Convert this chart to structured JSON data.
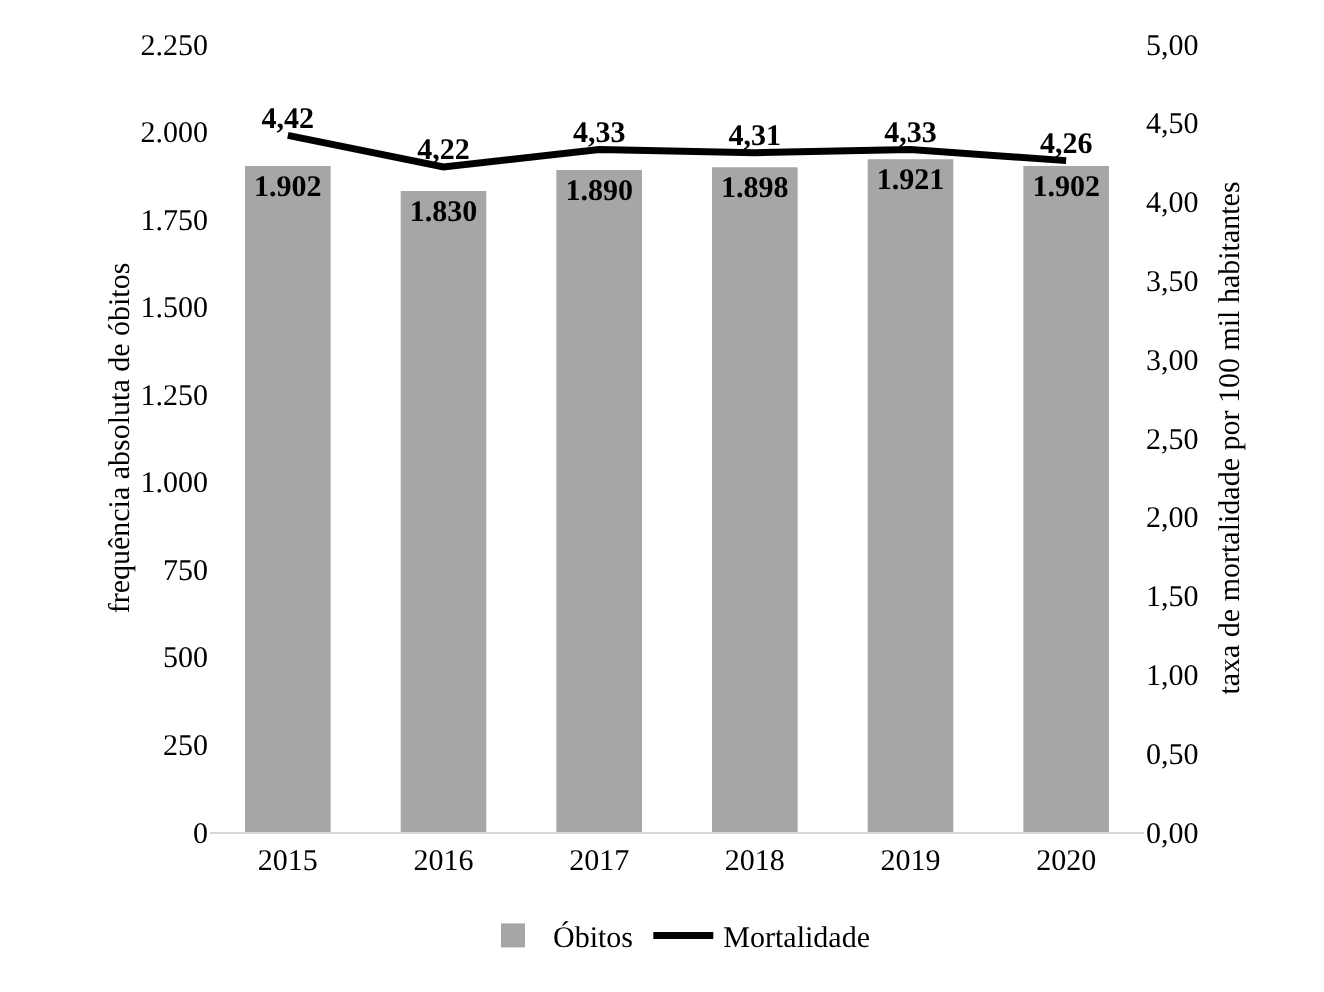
{
  "chart_data": {
    "type": "bar",
    "categories": [
      "2015",
      "2016",
      "2017",
      "2018",
      "2019",
      "2020"
    ],
    "series": [
      {
        "name": "Óbitos",
        "color": "#a6a6a6",
        "values": [
          1902,
          1830,
          1890,
          1898,
          1921,
          1902
        ],
        "value_labels": [
          "1.902",
          "1.830",
          "1.890",
          "1.898",
          "1.921",
          "1.902"
        ]
      },
      {
        "name": "Mortalidade",
        "type": "line",
        "axis": "y2",
        "color": "#000000",
        "values": [
          4.42,
          4.22,
          4.33,
          4.31,
          4.33,
          4.26
        ],
        "value_labels": [
          "4,42",
          "4,22",
          "4,33",
          "4,31",
          "4,33",
          "4,26"
        ]
      }
    ],
    "ylabel": "frequência absoluta de óbitos",
    "y2label": "taxa de mortalidade por 100 mil habitantes",
    "ylim": [
      0,
      2250
    ],
    "yticks": [
      0,
      250,
      500,
      750,
      {
        "value": 1000,
        "label": "1.000"
      },
      {
        "value": 1250,
        "label": "1.250"
      },
      {
        "value": 1500,
        "label": "1.500"
      },
      {
        "value": 1750,
        "label": "1.750"
      },
      {
        "value": 2000,
        "label": "2.000"
      },
      {
        "value": 2250,
        "label": "2.250"
      }
    ],
    "y2lim": [
      0,
      5
    ],
    "y2ticks": [
      {
        "value": 0,
        "label": "0,00"
      },
      {
        "value": 0.5,
        "label": "0,50"
      },
      {
        "value": 1,
        "label": "1,00"
      },
      {
        "value": 1.5,
        "label": "1,50"
      },
      {
        "value": 2,
        "label": "2,00"
      },
      {
        "value": 2.5,
        "label": "2,50"
      },
      {
        "value": 3,
        "label": "3,00"
      },
      {
        "value": 3.5,
        "label": "3,50"
      },
      {
        "value": 4,
        "label": "4,00"
      },
      {
        "value": 4.5,
        "label": "4,50"
      },
      {
        "value": 5,
        "label": "5,00"
      }
    ],
    "grid": false,
    "legend": "bottom",
    "marker": "none",
    "line_style": "solid"
  }
}
